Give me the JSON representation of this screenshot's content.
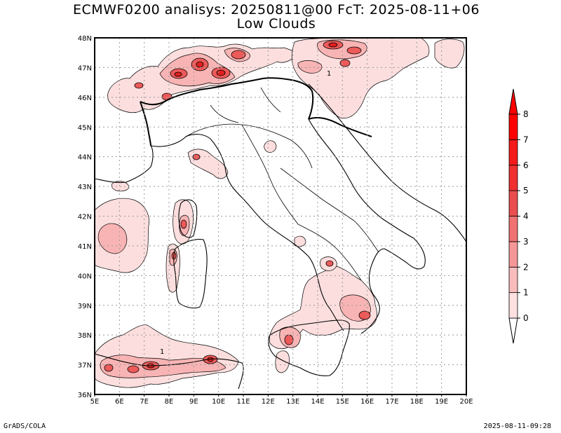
{
  "title": {
    "line1": "ECMWF0200 analisys: 20250811@00 FcT: 2025-08-11+06",
    "line2": "Low Clouds"
  },
  "map": {
    "lon_labels": [
      "5E",
      "6E",
      "7E",
      "8E",
      "9E",
      "10E",
      "11E",
      "12E",
      "13E",
      "14E",
      "15E",
      "16E",
      "17E",
      "18E",
      "19E",
      "20E"
    ],
    "lat_labels": [
      "48N",
      "47N",
      "46N",
      "45N",
      "44N",
      "43N",
      "42N",
      "41N",
      "40N",
      "39N",
      "38N",
      "37N",
      "36N"
    ],
    "lon_range": [
      5,
      20
    ],
    "lat_range": [
      36,
      48
    ],
    "grid": true,
    "contour_labels": [
      "1",
      "1"
    ]
  },
  "colorbar": {
    "levels": [
      "0",
      "1",
      "2",
      "3",
      "4",
      "5",
      "6",
      "7",
      "8"
    ],
    "colors": [
      "#ffffff",
      "#fde0e0",
      "#f9bcbc",
      "#f59797",
      "#f07272",
      "#eb4e4e",
      "#f03030",
      "#f51a1a",
      "#ff0000"
    ],
    "extends": "both"
  },
  "footer": {
    "left": "GrADS/COLA",
    "right": "2025-08-11-09:28"
  }
}
